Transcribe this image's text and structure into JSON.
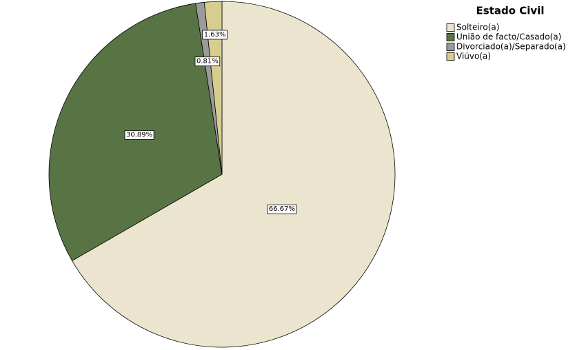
{
  "chart_data": {
    "type": "pie",
    "legend_title": "Estado Civil",
    "categories": [
      "Solteiro(a)",
      "União de facto/Casado(a)",
      "Divorciado(a)/Separado(a)",
      "Viúvo(a)"
    ],
    "values": [
      66.67,
      30.89,
      0.81,
      1.63
    ],
    "value_labels": [
      "66.67%",
      "30.89%",
      "0.81%",
      "1.63%"
    ],
    "colors": [
      "#ebe5cf",
      "#587444",
      "#9b9b9b",
      "#d6cd8f"
    ],
    "legend_position": "top-right"
  }
}
